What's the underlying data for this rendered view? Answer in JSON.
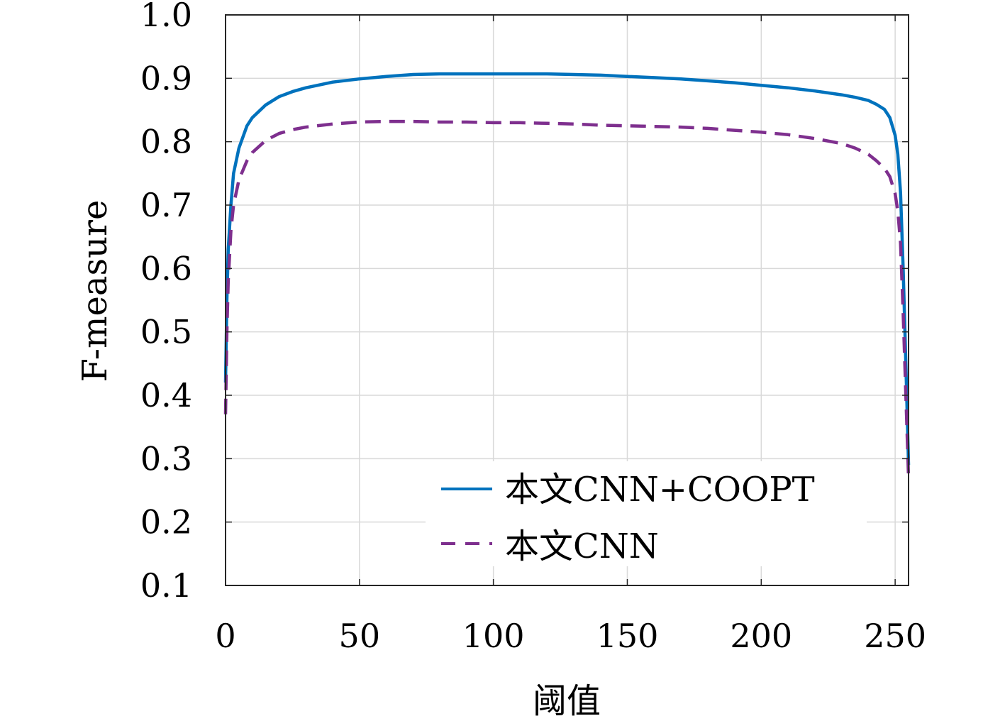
{
  "chart_data": {
    "type": "line",
    "title": "",
    "xlabel": "阈值",
    "ylabel": "F-measure",
    "xlim": [
      0,
      255
    ],
    "ylim": [
      0.1,
      1.0
    ],
    "xticks": [
      0,
      50,
      100,
      150,
      200,
      250
    ],
    "yticks": [
      0.1,
      0.2,
      0.3,
      0.4,
      0.5,
      0.6,
      0.7,
      0.8,
      0.9,
      1.0
    ],
    "xtick_labels": [
      "0",
      "50",
      "100",
      "150",
      "200",
      "250"
    ],
    "ytick_labels": [
      "0.1",
      "0.2",
      "0.3",
      "0.4",
      "0.5",
      "0.6",
      "0.7",
      "0.8",
      "0.9",
      "1.0"
    ],
    "grid": true,
    "legend_position": "bottom-right",
    "series": [
      {
        "name": "本文CNN+COOPT",
        "color": "#0072BD",
        "style": "solid",
        "x": [
          0,
          0.5,
          1,
          2,
          3,
          5,
          8,
          10,
          15,
          20,
          25,
          30,
          40,
          50,
          60,
          70,
          80,
          90,
          100,
          110,
          120,
          130,
          140,
          150,
          160,
          170,
          180,
          190,
          200,
          210,
          220,
          230,
          235,
          240,
          243,
          246,
          248,
          250,
          251,
          252,
          253,
          254,
          255
        ],
        "y": [
          0.42,
          0.55,
          0.63,
          0.7,
          0.75,
          0.79,
          0.825,
          0.838,
          0.858,
          0.871,
          0.879,
          0.885,
          0.894,
          0.899,
          0.903,
          0.906,
          0.907,
          0.907,
          0.907,
          0.907,
          0.907,
          0.906,
          0.905,
          0.903,
          0.901,
          0.899,
          0.896,
          0.893,
          0.889,
          0.885,
          0.88,
          0.874,
          0.87,
          0.865,
          0.859,
          0.851,
          0.838,
          0.81,
          0.78,
          0.72,
          0.6,
          0.45,
          0.29
        ]
      },
      {
        "name": "本文CNN",
        "color": "#7E2F8E",
        "style": "dashed",
        "x": [
          0,
          0.5,
          1,
          2,
          3,
          5,
          8,
          10,
          15,
          20,
          25,
          30,
          40,
          50,
          60,
          70,
          80,
          90,
          100,
          110,
          120,
          130,
          140,
          150,
          160,
          170,
          180,
          190,
          200,
          210,
          220,
          230,
          235,
          240,
          243,
          246,
          248,
          250,
          251,
          252,
          253,
          254,
          255
        ],
        "y": [
          0.37,
          0.5,
          0.58,
          0.66,
          0.7,
          0.74,
          0.77,
          0.783,
          0.802,
          0.813,
          0.819,
          0.823,
          0.828,
          0.831,
          0.832,
          0.832,
          0.831,
          0.831,
          0.83,
          0.83,
          0.829,
          0.828,
          0.826,
          0.825,
          0.824,
          0.823,
          0.821,
          0.818,
          0.815,
          0.811,
          0.805,
          0.797,
          0.79,
          0.78,
          0.77,
          0.758,
          0.745,
          0.718,
          0.69,
          0.64,
          0.53,
          0.4,
          0.27
        ]
      }
    ]
  }
}
